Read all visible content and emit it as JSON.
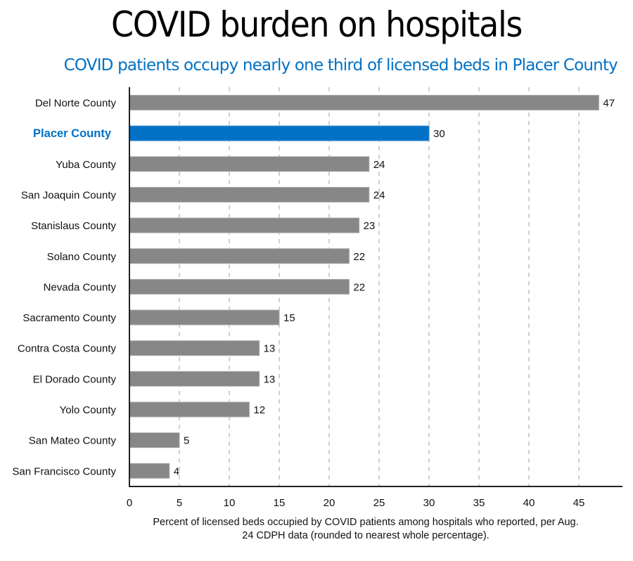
{
  "chart_data": {
    "type": "bar",
    "orientation": "horizontal",
    "title": "COVID burden on hospitals",
    "subtitle": "COVID patients occupy nearly one third of licensed beds in Placer County",
    "categories": [
      "Del Norte County",
      "Placer County",
      "Yuba County",
      "San Joaquin County",
      "Stanislaus County",
      "Solano County",
      "Nevada County",
      "Sacramento County",
      "Contra Costa County",
      "El Dorado County",
      "Yolo County",
      "San Mateo County",
      "San Francisco County"
    ],
    "values": [
      47,
      30,
      24,
      24,
      23,
      22,
      22,
      15,
      13,
      13,
      12,
      5,
      4
    ],
    "highlight": "Placer County",
    "xlabel": "Percent of licensed beds occupied by COVID patients among hospitals who reported, per Aug. 24 CDPH data (rounded to nearest whole percentage).",
    "xlabel_lines": [
      "Percent of licensed beds occupied by COVID patients among hospitals who reported, per Aug.",
      "24 CDPH data (rounded to nearest whole percentage)."
    ],
    "ylabel": "",
    "xlim": [
      0,
      49.5
    ],
    "xticks": [
      0,
      5,
      10,
      15,
      20,
      25,
      30,
      35,
      40,
      45
    ],
    "grid": "vertical dashed",
    "legend": "none",
    "colors": {
      "default_bar": "#878787",
      "highlight_bar": "#0071c5",
      "highlight_label": "#0071c5",
      "grid": "#b0b0b0",
      "axis": "#222222"
    }
  }
}
